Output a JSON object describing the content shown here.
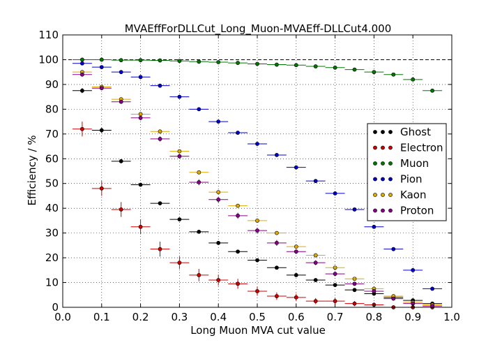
{
  "chart_data": {
    "type": "scatter",
    "title": "MVAEffForDLLCut_Long_Muon-MVAEff-DLLCut4.000",
    "xlabel": "Long Muon MVA cut value",
    "ylabel": "Efficiency / %",
    "xlim": [
      0.0,
      1.0
    ],
    "ylim": [
      0,
      110
    ],
    "xticks": [
      "0.0",
      "0.1",
      "0.2",
      "0.3",
      "0.4",
      "0.5",
      "0.6",
      "0.7",
      "0.8",
      "0.9",
      "1.0"
    ],
    "yticks": [
      "0",
      "10",
      "20",
      "30",
      "40",
      "50",
      "60",
      "70",
      "80",
      "90",
      "100",
      "110"
    ],
    "x_bin_half_width": 0.025,
    "reference_line": 100,
    "grid": true,
    "legend_position": "right",
    "x": [
      0.05,
      0.1,
      0.15,
      0.2,
      0.25,
      0.3,
      0.35,
      0.4,
      0.45,
      0.5,
      0.55,
      0.6,
      0.65,
      0.7,
      0.75,
      0.8,
      0.85,
      0.9,
      0.95
    ],
    "series": [
      {
        "name": "Ghost",
        "color": "#000000",
        "values": [
          87.5,
          71.5,
          59,
          49.5,
          42,
          35.5,
          30.5,
          26,
          22.5,
          19,
          16,
          13,
          11,
          9,
          7,
          5.5,
          4,
          2.8,
          1.5
        ],
        "errors": [
          1,
          1,
          0.8,
          0.7,
          0.6,
          0.5,
          0.5,
          0.4,
          0.4,
          0.4,
          0.3,
          0.3,
          0.3,
          0.3,
          0.2,
          0.2,
          0.2,
          0.2,
          0.2
        ]
      },
      {
        "name": "Electron",
        "color": "#cc0000",
        "values": [
          72,
          48,
          39.5,
          32.5,
          23.5,
          18,
          13,
          11,
          9.5,
          6.5,
          4.5,
          4,
          2.5,
          2.5,
          1.5,
          1,
          0,
          0,
          0
        ],
        "errors": [
          3,
          3,
          3,
          3,
          3,
          2.5,
          2.5,
          2.2,
          2,
          1.8,
          1.5,
          1.5,
          1.2,
          1.2,
          1,
          1,
          0.8,
          0.8,
          0.8
        ]
      },
      {
        "name": "Muon",
        "color": "#007700",
        "values": [
          100,
          100,
          99.8,
          99.8,
          99.7,
          99.5,
          99.2,
          99,
          98.7,
          98.3,
          98,
          97.8,
          97.3,
          96.8,
          96,
          95,
          94,
          92,
          87.5
        ],
        "errors": [
          0.1,
          0.1,
          0.1,
          0.1,
          0.1,
          0.1,
          0.1,
          0.1,
          0.1,
          0.1,
          0.1,
          0.1,
          0.1,
          0.2,
          0.2,
          0.2,
          0.2,
          0.3,
          0.4
        ]
      },
      {
        "name": "Pion",
        "color": "#0000cc",
        "values": [
          98.5,
          97,
          95,
          93,
          89.5,
          85,
          80,
          75,
          70.5,
          66,
          61.5,
          56.5,
          51,
          46,
          39.5,
          32.5,
          23.5,
          15,
          7.5
        ],
        "errors": [
          0.3,
          0.3,
          0.3,
          0.3,
          0.3,
          0.3,
          0.3,
          0.3,
          0.3,
          0.3,
          0.3,
          0.3,
          0.3,
          0.3,
          0.3,
          0.3,
          0.3,
          0.3,
          0.3
        ]
      },
      {
        "name": "Kaon",
        "color": "#ddaa00",
        "values": [
          95,
          89,
          84,
          78,
          71,
          63,
          54.5,
          46.5,
          41,
          35,
          30,
          24.5,
          21,
          16,
          11.5,
          7.5,
          4.5,
          2,
          1
        ],
        "errors": [
          0.5,
          0.5,
          0.5,
          0.5,
          0.5,
          0.5,
          0.5,
          0.5,
          0.5,
          0.5,
          0.5,
          0.5,
          0.4,
          0.4,
          0.4,
          0.3,
          0.3,
          0.3,
          0.3
        ]
      },
      {
        "name": "Proton",
        "color": "#880088",
        "values": [
          94,
          88.5,
          83,
          76.5,
          68,
          61,
          50.5,
          43.5,
          37,
          31,
          26,
          22.5,
          18,
          13.5,
          9.5,
          6.5,
          3.5,
          1.5,
          0.5
        ],
        "errors": [
          0.8,
          0.8,
          0.8,
          1,
          1,
          1,
          1.2,
          1.2,
          1.2,
          1.2,
          1.2,
          1,
          1,
          1,
          0.8,
          0.8,
          0.6,
          0.5,
          0.5
        ]
      }
    ]
  }
}
